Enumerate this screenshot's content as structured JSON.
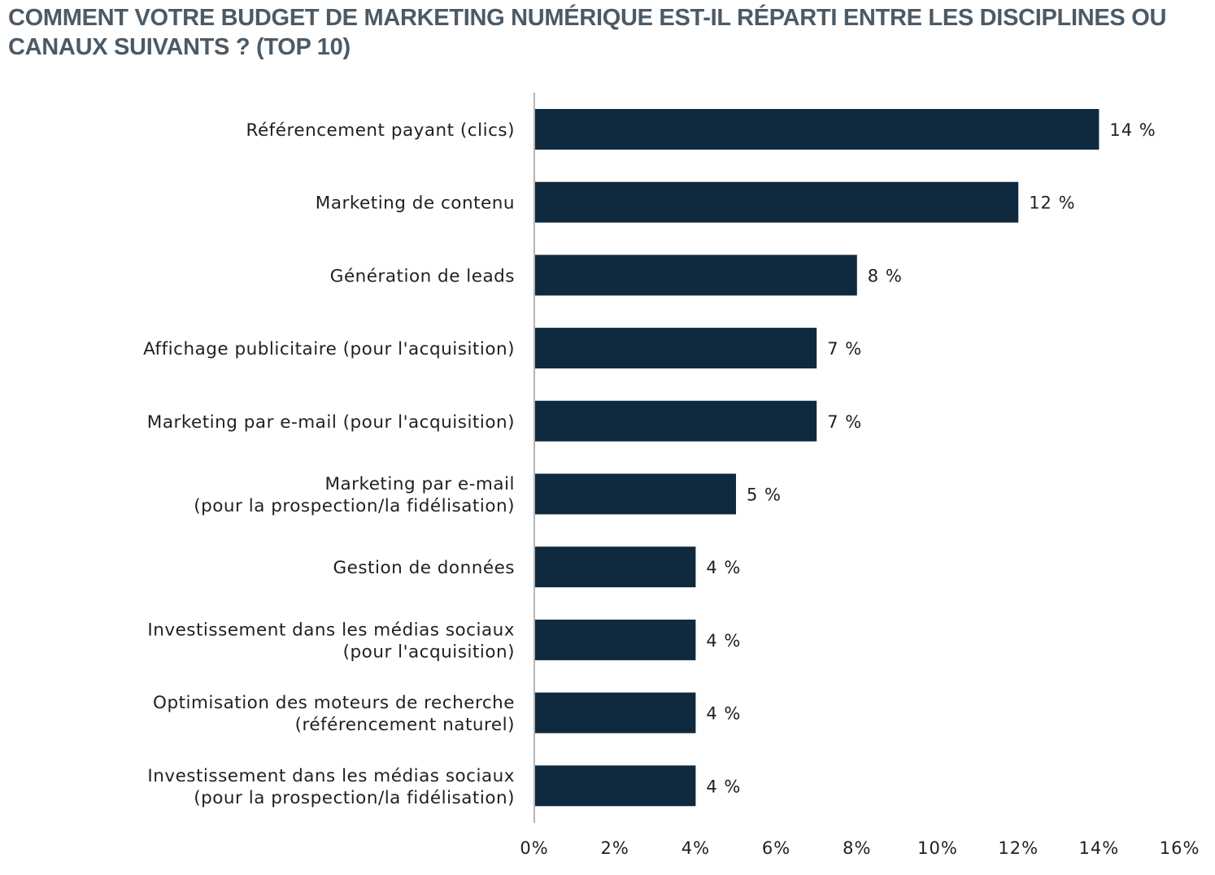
{
  "chart_data": {
    "type": "bar",
    "orientation": "horizontal",
    "title": "COMMENT VOTRE BUDGET DE MARKETING NUMÉRIQUE EST-IL RÉPARTI ENTRE LES DISCIPLINES OU CANAUX SUIVANTS ? (TOP 10)",
    "categories": [
      [
        "Référencement payant (clics)"
      ],
      [
        "Marketing de contenu"
      ],
      [
        "Génération de leads"
      ],
      [
        "Affichage publicitaire (pour l'acquisition)"
      ],
      [
        "Marketing par e-mail (pour l'acquisition)"
      ],
      [
        "Marketing par e-mail",
        "(pour la prospection/la fidélisation)"
      ],
      [
        "Gestion de données"
      ],
      [
        "Investissement dans les médias sociaux",
        "(pour l'acquisition)"
      ],
      [
        "Optimisation des moteurs de recherche",
        "(référencement naturel)"
      ],
      [
        "Investissement dans les médias sociaux",
        "(pour la prospection/la fidélisation)"
      ]
    ],
    "values": [
      14,
      12,
      8,
      7,
      7,
      5,
      4,
      4,
      4,
      4
    ],
    "value_labels": [
      "14 %",
      "12 %",
      "8 %",
      "7 %",
      "7 %",
      "5 %",
      "4 %",
      "4 %",
      "4 %",
      "4 %"
    ],
    "xlim": [
      0,
      16
    ],
    "xticks": [
      "0%",
      "2%",
      "4%",
      "6%",
      "8%",
      "10%",
      "12%",
      "14%",
      "16%"
    ],
    "xlabel": "",
    "ylabel": "",
    "grid": false,
    "legend": "none",
    "colors": {
      "bar": "#0f2a3e",
      "axis": "#b5b5b5",
      "title": "#4c5a66"
    }
  }
}
